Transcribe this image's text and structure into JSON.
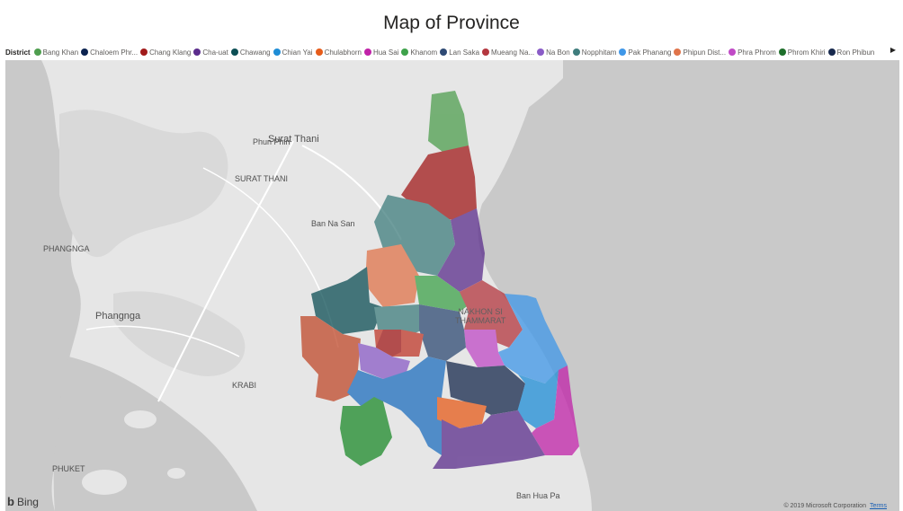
{
  "title": "Map of Province",
  "legend": {
    "title": "District",
    "items": [
      {
        "label": "Bang Khan",
        "color": "#4f9e4f"
      },
      {
        "label": "Chaloem Phr...",
        "color": "#0b2350"
      },
      {
        "label": "Chang Klang",
        "color": "#a11b1b"
      },
      {
        "label": "Cha-uat",
        "color": "#5b2d8c"
      },
      {
        "label": "Chawang",
        "color": "#0d4f55"
      },
      {
        "label": "Chian Yai",
        "color": "#1f8dd6"
      },
      {
        "label": "Chulabhorn",
        "color": "#e65c1a"
      },
      {
        "label": "Hua Sai",
        "color": "#c022a8"
      },
      {
        "label": "Khanom",
        "color": "#3ea24b"
      },
      {
        "label": "Lan Saka",
        "color": "#2e4a74"
      },
      {
        "label": "Mueang Na...",
        "color": "#b4373f"
      },
      {
        "label": "Na Bon",
        "color": "#8a5cc7"
      },
      {
        "label": "Nopphitam",
        "color": "#3f7d7d"
      },
      {
        "label": "Pak Phanang",
        "color": "#3f97e8"
      },
      {
        "label": "Phipun Dist...",
        "color": "#e0744a"
      },
      {
        "label": "Phra Phrom",
        "color": "#c04ac6"
      },
      {
        "label": "Phrom Khiri",
        "color": "#1d6e2a"
      },
      {
        "label": "Ron Phibun",
        "color": "#17294d"
      }
    ]
  },
  "map": {
    "places": {
      "surat_thani_city": "Surat Thani",
      "phun_phin": "Phun Phin",
      "surat_thani_province": "SURAT THANI",
      "ban_na_san": "Ban Na San",
      "phangnga_province": "PHANGNGA",
      "phangnga_city": "Phangnga",
      "krabi": "KRABI",
      "phuket": "PHUKET",
      "nakhon_line1": "NAKHON SI",
      "nakhon_line2": "THAMMARAT",
      "ban_hua_pa": "Ban Hua Pa"
    },
    "attribution": {
      "bing": "Bing",
      "copyright": "© 2019 Microsoft Corporation",
      "terms": "Terms"
    }
  }
}
